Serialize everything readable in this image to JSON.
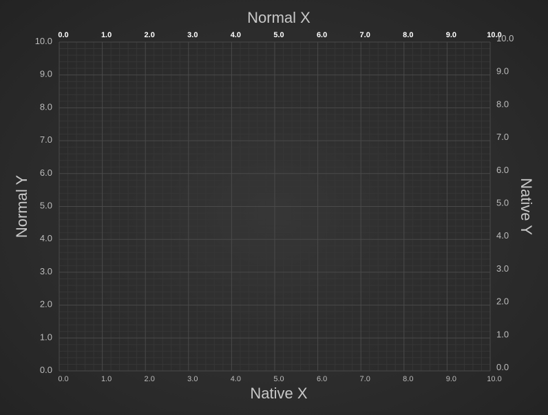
{
  "chart_data": {
    "type": "scatter",
    "title": "",
    "x_axes": [
      {
        "id": "native-x",
        "label": "Native X",
        "position": "bottom",
        "range": [
          0,
          10
        ],
        "ticks": [
          0,
          1,
          2,
          3,
          4,
          5,
          6,
          7,
          8,
          9,
          10
        ],
        "tick_labels": [
          "0.0",
          "1.0",
          "2.0",
          "3.0",
          "4.0",
          "5.0",
          "6.0",
          "7.0",
          "8.0",
          "9.0",
          "10.0"
        ]
      },
      {
        "id": "normal-x",
        "label": "Normal X",
        "position": "top",
        "range": [
          0,
          10
        ],
        "ticks": [
          0,
          1,
          2,
          3,
          4,
          5,
          6,
          7,
          8,
          9,
          10
        ],
        "tick_labels": [
          "0.0",
          "1.0",
          "2.0",
          "3.0",
          "4.0",
          "5.0",
          "6.0",
          "7.0",
          "8.0",
          "9.0",
          "10.0"
        ]
      }
    ],
    "y_axes": [
      {
        "id": "normal-y",
        "label": "Normal Y",
        "position": "left",
        "range": [
          0,
          10
        ],
        "ticks": [
          0,
          1,
          2,
          3,
          4,
          5,
          6,
          7,
          8,
          9,
          10
        ],
        "tick_labels": [
          "0.0",
          "1.0",
          "2.0",
          "3.0",
          "4.0",
          "5.0",
          "6.0",
          "7.0",
          "8.0",
          "9.0",
          "10.0"
        ]
      },
      {
        "id": "native-y",
        "label": "Native Y",
        "position": "right",
        "range": [
          0,
          10
        ],
        "ticks": [
          0,
          1,
          2,
          3,
          4,
          5,
          6,
          7,
          8,
          9,
          10
        ],
        "tick_labels": [
          "0.0",
          "1.0",
          "2.0",
          "3.0",
          "4.0",
          "5.0",
          "6.0",
          "7.0",
          "8.0",
          "9.0",
          "10.0"
        ]
      }
    ],
    "grid": true,
    "minor_grid": true,
    "series": [],
    "colors": {
      "background": "#2f2f2f",
      "plot_background": "#2a2a2a",
      "major_grid": "#4a4a4a",
      "minor_grid": "#363636",
      "tick_label": "#bdbdbd",
      "top_tick_label": "#ffffff",
      "axis_title": "#c8c8c8"
    }
  }
}
